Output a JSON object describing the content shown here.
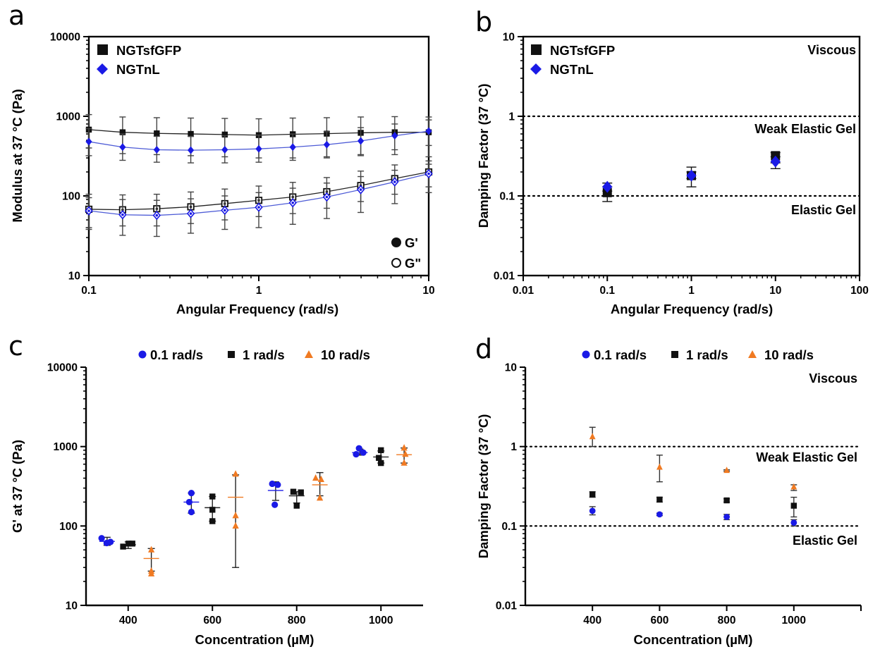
{
  "colors": {
    "black": "#111111",
    "blue": "#1a1ae6",
    "blue_line": "#4d5bd6",
    "orange": "#f07a22",
    "error": "#333333"
  },
  "chart_data": [
    {
      "id": "a",
      "type": "line",
      "panel_label": "a",
      "xlabel": "Angular Frequency (rad/s)",
      "ylabel": "Modulus at 37 °C (Pa)",
      "xscale": "log",
      "yscale": "log",
      "xlim": [
        0.1,
        10
      ],
      "ylim": [
        10,
        10000
      ],
      "xticks": [
        "0.1",
        "1",
        "10"
      ],
      "yticks": [
        "10",
        "100",
        "1000",
        "10000"
      ],
      "legend": [
        {
          "label": "NGTsfGFP",
          "marker": "square",
          "color": "black"
        },
        {
          "label": "NGTnL",
          "marker": "diamond",
          "color": "blue"
        }
      ],
      "marker_legend": [
        {
          "label": "G'",
          "filled": true
        },
        {
          "label": "G\"",
          "filled": false
        }
      ],
      "x": [
        0.1,
        0.158,
        0.251,
        0.398,
        0.631,
        1.0,
        1.585,
        2.512,
        3.981,
        6.31,
        10.0
      ],
      "series": [
        {
          "name": "NGTsfGFP G'",
          "color": "black",
          "marker": "square",
          "filled": true,
          "values": [
            680,
            630,
            610,
            600,
            590,
            580,
            595,
            605,
            620,
            630,
            630
          ],
          "err_low": [
            400,
            340,
            330,
            320,
            310,
            300,
            300,
            310,
            320,
            330,
            310
          ],
          "err_high": [
            1050,
            980,
            960,
            950,
            940,
            930,
            950,
            960,
            980,
            990,
            980
          ]
        },
        {
          "name": "NGTnL G'",
          "color": "blue",
          "marker": "diamond",
          "filled": true,
          "values": [
            480,
            410,
            380,
            375,
            380,
            390,
            410,
            440,
            490,
            570,
            650
          ],
          "err_low": [
            320,
            280,
            265,
            260,
            260,
            265,
            280,
            300,
            330,
            380,
            430
          ],
          "err_high": [
            700,
            600,
            560,
            560,
            570,
            580,
            600,
            640,
            720,
            800,
            900
          ]
        },
        {
          "name": "NGTsfGFP G\"",
          "color": "black",
          "marker": "square",
          "filled": false,
          "values": [
            68,
            67,
            69,
            73,
            80,
            88,
            97,
            113,
            135,
            165,
            200
          ],
          "err_low": [
            40,
            42,
            42,
            45,
            50,
            55,
            60,
            70,
            85,
            105,
            130
          ],
          "err_high": [
            105,
            103,
            105,
            112,
            122,
            133,
            148,
            170,
            205,
            245,
            275
          ]
        },
        {
          "name": "NGTnL G\"",
          "color": "blue",
          "marker": "diamond",
          "filled": false,
          "values": [
            65,
            58,
            57,
            60,
            66,
            72,
            82,
            97,
            120,
            150,
            190
          ],
          "err_low": [
            38,
            32,
            31,
            34,
            38,
            40,
            44,
            52,
            62,
            80,
            110
          ],
          "err_high": [
            95,
            90,
            88,
            92,
            100,
            110,
            125,
            145,
            175,
            210,
            250
          ]
        }
      ]
    },
    {
      "id": "b",
      "type": "scatter",
      "panel_label": "b",
      "xlabel": "Angular Frequency (rad/s)",
      "ylabel": "Damping Factor (37 °C)",
      "xscale": "log",
      "yscale": "log",
      "xlim": [
        0.01,
        100
      ],
      "ylim": [
        0.01,
        10
      ],
      "xticks": [
        "0.01",
        "0.1",
        "1",
        "10",
        "100"
      ],
      "yticks": [
        "0.01",
        "0.1",
        "1",
        "10"
      ],
      "legend": [
        {
          "label": "NGTsfGFP",
          "marker": "square",
          "color": "black"
        },
        {
          "label": "NGTnL",
          "marker": "diamond",
          "color": "blue"
        }
      ],
      "reference_lines": [
        {
          "y": 1
        },
        {
          "y": 0.1
        }
      ],
      "annotations": [
        "Viscous",
        "Weak Elastic Gel",
        "Elastic Gel"
      ],
      "x": [
        0.1,
        1,
        10
      ],
      "series": [
        {
          "name": "NGTsfGFP",
          "color": "black",
          "marker": "square",
          "values": [
            0.11,
            0.18,
            0.32
          ],
          "err_low": [
            0.085,
            0.13,
            0.26
          ],
          "err_high": [
            0.13,
            0.23,
            0.35
          ]
        },
        {
          "name": "NGTnL",
          "color": "blue",
          "marker": "diamond",
          "values": [
            0.13,
            0.18,
            0.27
          ],
          "err_low": [
            0.115,
            0.165,
            0.22
          ],
          "err_high": [
            0.145,
            0.2,
            0.31
          ]
        }
      ]
    },
    {
      "id": "c",
      "type": "scatter",
      "panel_label": "c",
      "xlabel": "Concentration (µM)",
      "ylabel": "G' at 37 °C (Pa)",
      "xscale": "linear",
      "yscale": "log",
      "xlim": [
        300,
        1100
      ],
      "ylim": [
        10,
        10000
      ],
      "xticks": [
        "400",
        "600",
        "800",
        "1000"
      ],
      "yticks": [
        "10",
        "100",
        "1000",
        "10000"
      ],
      "legend": [
        {
          "label": "0.1 rad/s",
          "marker": "circle",
          "color": "blue"
        },
        {
          "label": "1 rad/s",
          "marker": "square",
          "color": "black"
        },
        {
          "label": "10 rad/s",
          "marker": "triangle",
          "color": "orange"
        }
      ],
      "groups": [
        {
          "series": "0.1 rad/s",
          "color": "blue",
          "marker": "circle",
          "x": 350,
          "mean": 64,
          "err": [
            57,
            72
          ],
          "points": [
            [
              337,
              70
            ],
            [
              349,
              61
            ],
            [
              358,
              63
            ]
          ]
        },
        {
          "series": "1 rad/s",
          "color": "black",
          "marker": "square",
          "x": 400,
          "mean": 58,
          "err": [
            52,
            63
          ],
          "points": [
            [
              388,
              55
            ],
            [
              401,
              60
            ],
            [
              410,
              60
            ]
          ]
        },
        {
          "series": "10 rad/s",
          "color": "orange",
          "marker": "triangle",
          "x": 455,
          "mean": 39,
          "err": [
            27,
            52
          ],
          "points": [
            [
              455,
              50
            ],
            [
              455,
              25
            ],
            [
              455,
              27
            ]
          ]
        },
        {
          "series": "0.1 rad/s",
          "color": "blue",
          "marker": "circle",
          "x": 550,
          "mean": 200,
          "err": [
            145,
            260
          ],
          "points": [
            [
              550,
              260
            ],
            [
              545,
              200
            ],
            [
              550,
              150
            ]
          ]
        },
        {
          "series": "1 rad/s",
          "color": "black",
          "marker": "square",
          "x": 600,
          "mean": 170,
          "err": [
            115,
            235
          ],
          "points": [
            [
              600,
              235
            ],
            [
              600,
              160
            ],
            [
              600,
              115
            ]
          ]
        },
        {
          "series": "10 rad/s",
          "color": "orange",
          "marker": "triangle",
          "x": 655,
          "mean": 230,
          "err": [
            30,
            440
          ],
          "points": [
            [
              655,
              450
            ],
            [
              655,
              135
            ],
            [
              655,
              100
            ]
          ]
        },
        {
          "series": "0.1 rad/s",
          "color": "blue",
          "marker": "circle",
          "x": 750,
          "mean": 280,
          "err": [
            210,
            360
          ],
          "points": [
            [
              742,
              340
            ],
            [
              748,
              185
            ],
            [
              755,
              330
            ]
          ]
        },
        {
          "series": "1 rad/s",
          "color": "black",
          "marker": "square",
          "x": 800,
          "mean": 240,
          "err": [
            195,
            270
          ],
          "points": [
            [
              792,
              270
            ],
            [
              800,
              180
            ],
            [
              810,
              265
            ]
          ]
        },
        {
          "series": "10 rad/s",
          "color": "orange",
          "marker": "triangle",
          "x": 855,
          "mean": 330,
          "err": [
            240,
            470
          ],
          "points": [
            [
              858,
              385
            ],
            [
              845,
              400
            ],
            [
              855,
              225
            ]
          ]
        },
        {
          "series": "0.1 rad/s",
          "color": "blue",
          "marker": "circle",
          "x": 950,
          "mean": 840,
          "err": [
            780,
            930
          ],
          "points": [
            [
              941,
              800
            ],
            [
              948,
              950
            ],
            [
              958,
              840
            ]
          ]
        },
        {
          "series": "1 rad/s",
          "color": "black",
          "marker": "square",
          "x": 1000,
          "mean": 740,
          "err": [
            620,
            880
          ],
          "points": [
            [
              1000,
              900
            ],
            [
              995,
              720
            ],
            [
              1000,
              620
            ]
          ]
        },
        {
          "series": "10 rad/s",
          "color": "orange",
          "marker": "triangle",
          "x": 1055,
          "mean": 790,
          "err": [
            620,
            960
          ],
          "points": [
            [
              1055,
              960
            ],
            [
              1058,
              800
            ],
            [
              1055,
              620
            ]
          ]
        }
      ]
    },
    {
      "id": "d",
      "type": "scatter",
      "panel_label": "d",
      "xlabel": "Concentration (µM)",
      "ylabel": "Damping Factor (37 °C)",
      "xscale": "linear",
      "yscale": "log",
      "xlim": [
        200,
        1200
      ],
      "ylim": [
        0.01,
        10
      ],
      "xticks": [
        "400",
        "600",
        "800",
        "1000"
      ],
      "yticks": [
        "0.01",
        "0.1",
        "1",
        "10"
      ],
      "legend": [
        {
          "label": "0.1 rad/s",
          "marker": "circle",
          "color": "blue"
        },
        {
          "label": "1 rad/s",
          "marker": "square",
          "color": "black"
        },
        {
          "label": "10 rad/s",
          "marker": "triangle",
          "color": "orange"
        }
      ],
      "reference_lines": [
        {
          "y": 1
        },
        {
          "y": 0.1
        }
      ],
      "annotations": [
        "Viscous",
        "Weak Elastic Gel",
        "Elastic Gel"
      ],
      "groups": [
        {
          "series": "0.1 rad/s",
          "color": "blue",
          "marker": "circle",
          "x": 400,
          "mean": 0.155,
          "err": [
            0.138,
            0.175
          ]
        },
        {
          "series": "1 rad/s",
          "color": "black",
          "marker": "square",
          "x": 400,
          "mean": 0.25,
          "err": [
            0.23,
            0.27
          ]
        },
        {
          "series": "10 rad/s",
          "color": "orange",
          "marker": "triangle",
          "x": 400,
          "mean": 1.33,
          "err": [
            1.0,
            1.75
          ]
        },
        {
          "series": "0.1 rad/s",
          "color": "blue",
          "marker": "circle",
          "x": 600,
          "mean": 0.14,
          "err": [
            0.135,
            0.145
          ]
        },
        {
          "series": "1 rad/s",
          "color": "black",
          "marker": "square",
          "x": 600,
          "mean": 0.215,
          "err": [
            0.2,
            0.23
          ]
        },
        {
          "series": "10 rad/s",
          "color": "orange",
          "marker": "triangle",
          "x": 600,
          "mean": 0.55,
          "err": [
            0.36,
            0.78
          ]
        },
        {
          "series": "0.1 rad/s",
          "color": "blue",
          "marker": "circle",
          "x": 800,
          "mean": 0.13,
          "err": [
            0.12,
            0.14
          ]
        },
        {
          "series": "1 rad/s",
          "color": "black",
          "marker": "square",
          "x": 800,
          "mean": 0.21,
          "err": [
            0.2,
            0.22
          ]
        },
        {
          "series": "10 rad/s",
          "color": "orange",
          "marker": "triangle",
          "x": 800,
          "mean": 0.5,
          "err": [
            0.49,
            0.51
          ]
        },
        {
          "series": "0.1 rad/s",
          "color": "blue",
          "marker": "circle",
          "x": 1000,
          "mean": 0.11,
          "err": [
            0.1,
            0.12
          ]
        },
        {
          "series": "1 rad/s",
          "color": "black",
          "marker": "square",
          "x": 1000,
          "mean": 0.18,
          "err": [
            0.13,
            0.23
          ]
        },
        {
          "series": "10 rad/s",
          "color": "orange",
          "marker": "triangle",
          "x": 1000,
          "mean": 0.31,
          "err": [
            0.28,
            0.33
          ]
        }
      ]
    }
  ]
}
